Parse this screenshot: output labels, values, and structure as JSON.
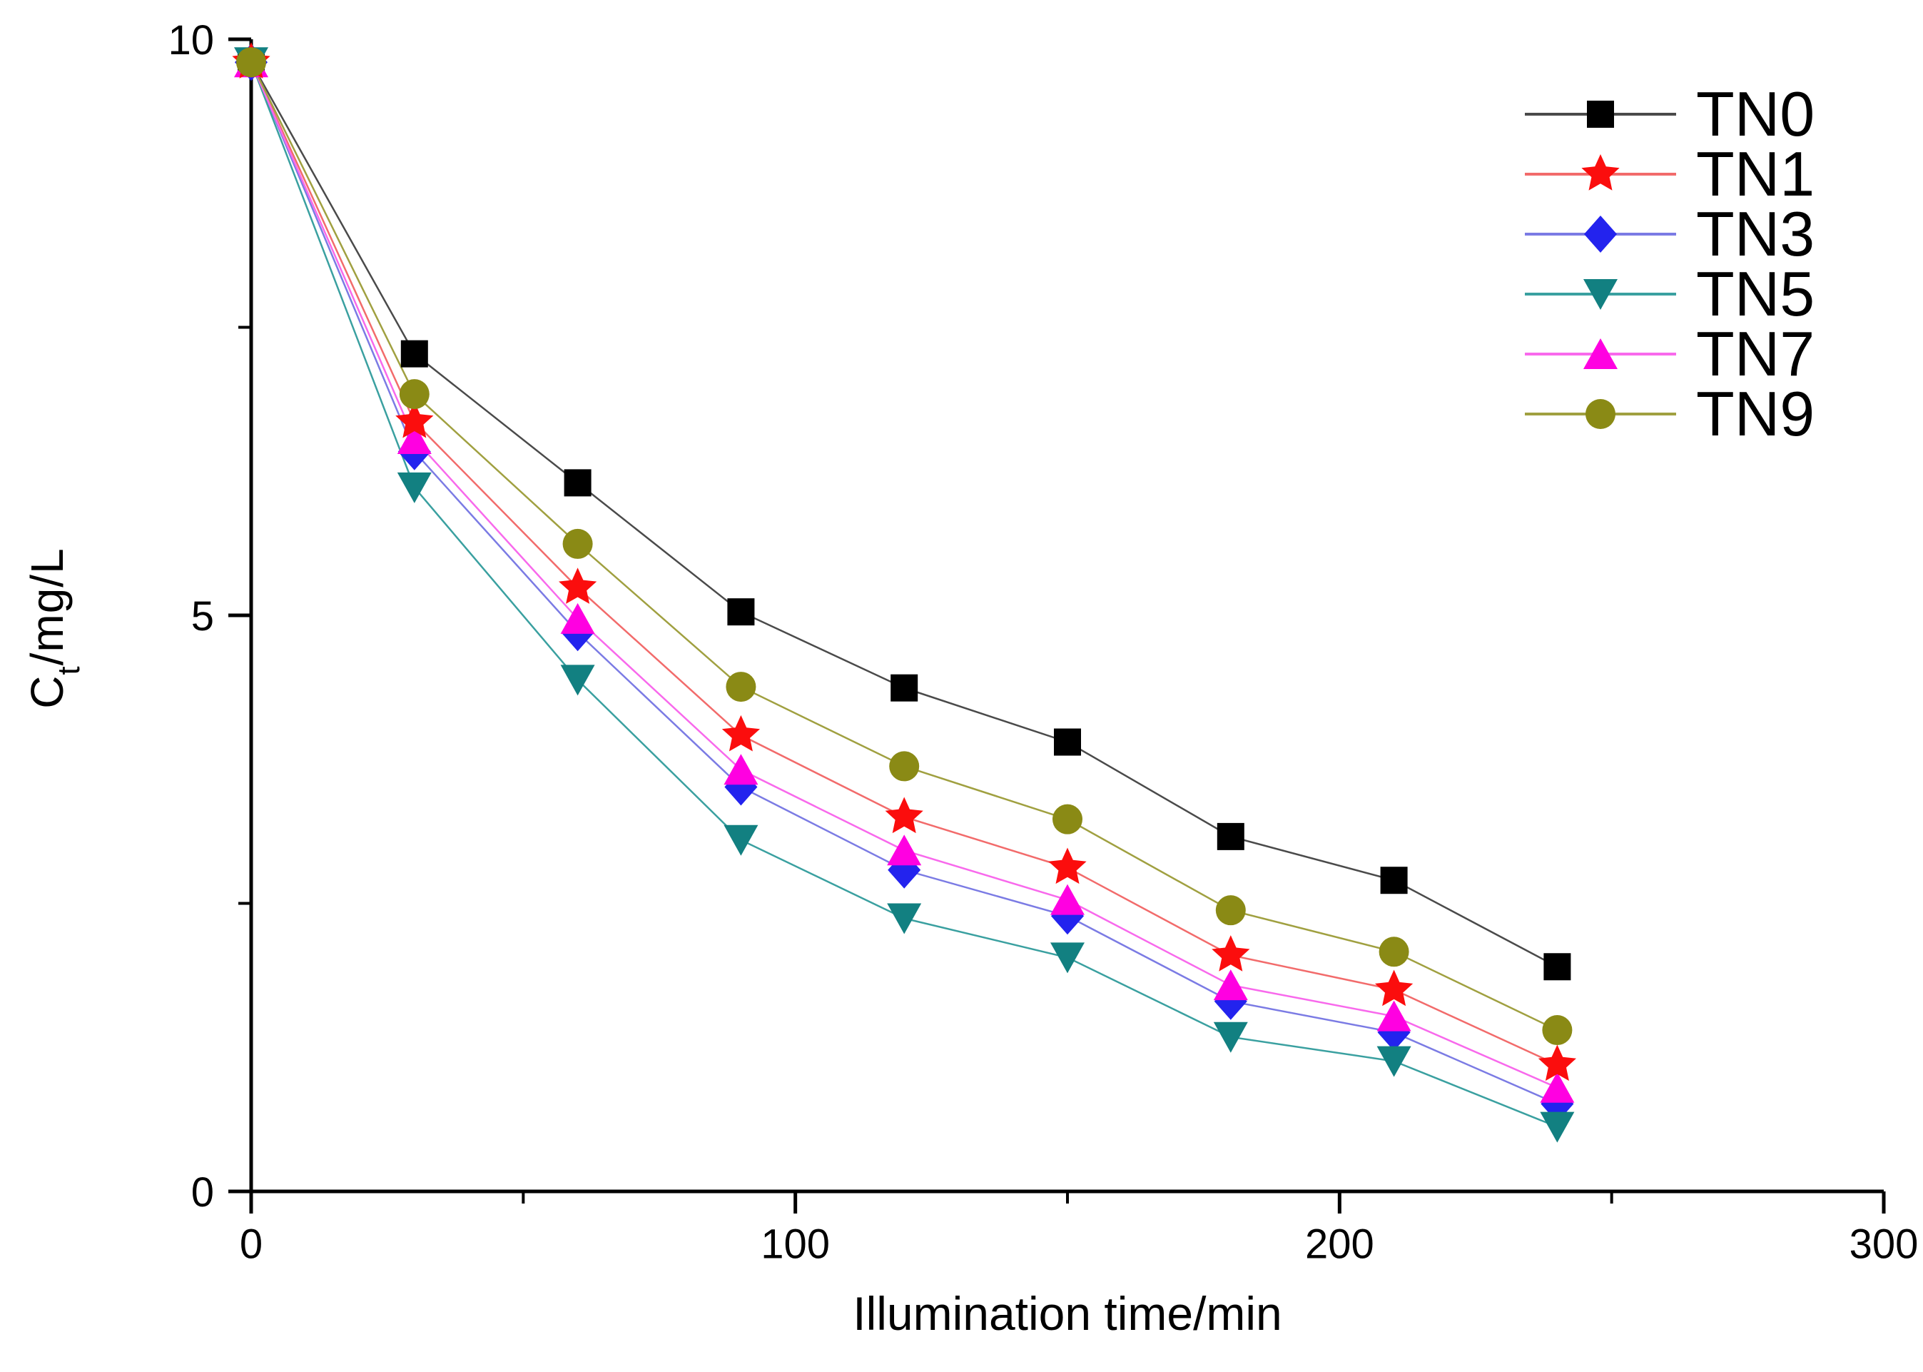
{
  "chart_data": {
    "type": "line",
    "title": "",
    "xlabel": "Illumination time/min",
    "ylabel": "Ct/mg/L",
    "ylabel_parts": {
      "main": "C",
      "sub": "t",
      "rest": "/mg/L"
    },
    "xlim": [
      0,
      300
    ],
    "ylim": [
      0,
      10
    ],
    "x_ticks": [
      0,
      100,
      200,
      300
    ],
    "x_minor_ticks": [
      50,
      150,
      250
    ],
    "y_ticks": [
      0,
      5,
      10
    ],
    "y_minor_ticks": [
      2.5,
      7.5
    ],
    "grid": "off",
    "legend_position": "upper right",
    "x": [
      0,
      30,
      60,
      90,
      120,
      150,
      180,
      210,
      240
    ],
    "series": [
      {
        "name": "TN0",
        "marker": "square",
        "color": "#000000",
        "line_color": "#4a4a4a",
        "values": [
          9.8,
          7.27,
          6.15,
          5.03,
          4.37,
          3.9,
          3.08,
          2.7,
          1.95
        ]
      },
      {
        "name": "TN1",
        "marker": "star",
        "color": "#fb0d0d",
        "line_color": "#f26b6b",
        "values": [
          9.8,
          6.68,
          5.24,
          3.96,
          3.25,
          2.81,
          2.05,
          1.75,
          1.1
        ]
      },
      {
        "name": "TN3",
        "marker": "diamond",
        "color": "#2323ee",
        "line_color": "#7b7be4",
        "values": [
          9.8,
          6.42,
          4.85,
          3.51,
          2.79,
          2.39,
          1.65,
          1.38,
          0.76
        ]
      },
      {
        "name": "TN5",
        "marker": "triangle-down",
        "color": "#128081",
        "line_color": "#3aa0a0",
        "values": [
          9.8,
          6.11,
          4.44,
          3.05,
          2.37,
          2.03,
          1.34,
          1.13,
          0.56
        ]
      },
      {
        "name": "TN7",
        "marker": "triangle-up",
        "color": "#ff00e1",
        "line_color": "#f869ec",
        "values": [
          9.8,
          6.53,
          4.97,
          3.66,
          2.96,
          2.53,
          1.79,
          1.52,
          0.9
        ]
      },
      {
        "name": "TN9",
        "marker": "circle",
        "color": "#8a8a15",
        "line_color": "#a0a040",
        "values": [
          9.8,
          6.92,
          5.62,
          4.38,
          3.69,
          3.23,
          2.44,
          2.08,
          1.4
        ]
      }
    ]
  }
}
